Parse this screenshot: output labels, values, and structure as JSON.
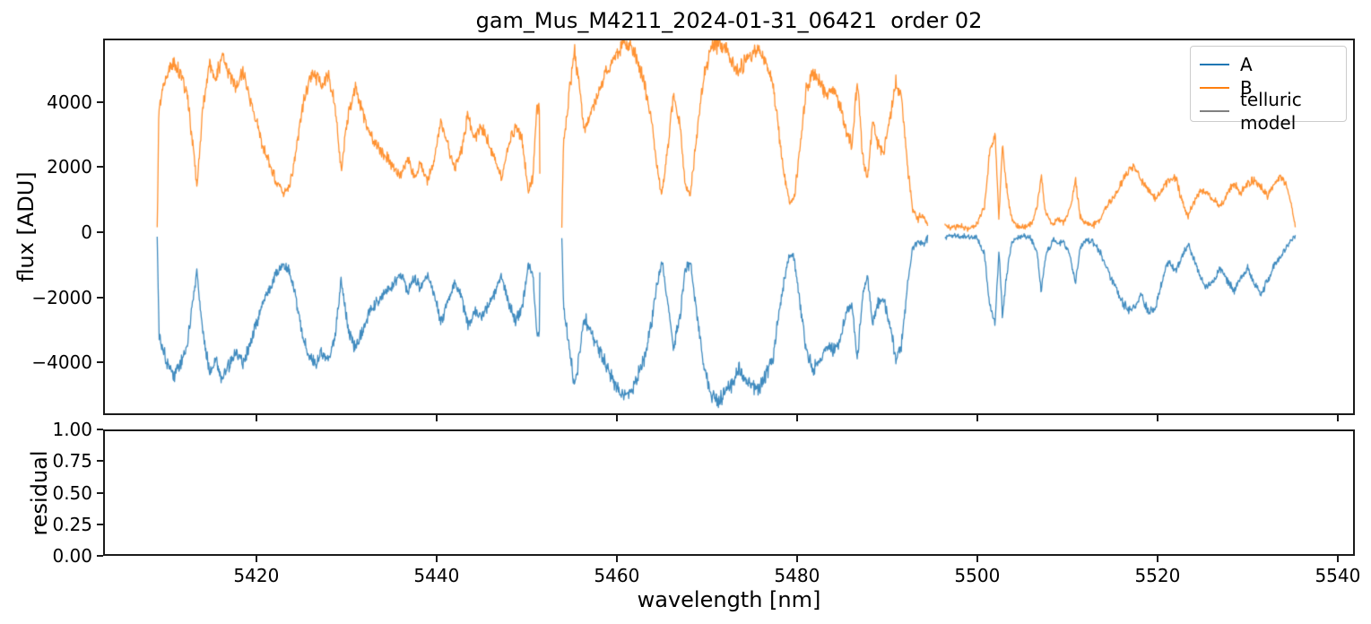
{
  "title": "gam_Mus_M4211_2024-01-31_06421  order 02",
  "chart_data": {
    "type": "line",
    "title": "gam_Mus_M4211_2024-01-31_06421  order 02",
    "xlabel": "wavelength [nm]",
    "legend": {
      "position": "upper right",
      "entries": [
        {
          "label": "A",
          "color": "#1f77b4"
        },
        {
          "label": "B",
          "color": "#ff7f0e"
        },
        {
          "label": "telluric model",
          "color": "#808080"
        }
      ]
    },
    "top_panel": {
      "ylabel": "flux [ADU]",
      "ylim": [
        -5612,
        5942
      ],
      "yticks": {
        "values": [
          4000,
          2000,
          0,
          -2000,
          -4000
        ],
        "labels": [
          "4000",
          "2000",
          "0",
          "−2000",
          "−4000"
        ]
      },
      "xlim": [
        5403.0,
        5541.9
      ],
      "xticks": {
        "values": [
          5420,
          5440,
          5460,
          5480,
          5500,
          5520,
          5540
        ],
        "labels": [
          "5420",
          "5440",
          "5460",
          "5480",
          "5500",
          "5520",
          "5540"
        ]
      },
      "grid": false,
      "series_keys": [
        "A",
        "B"
      ],
      "telluric_model_plotted": false,
      "segments": [
        {
          "noise": 330,
          "x": [
            5409.0,
            5409.2,
            5410.0,
            5410.8,
            5411.5,
            5412.3,
            5413.0,
            5413.4,
            5414.0,
            5414.8,
            5415.5,
            5416.2,
            5417.0,
            5417.8,
            5418.5,
            5419.2,
            5420.0,
            5420.8,
            5421.5,
            5422.3,
            5423.0,
            5423.6,
            5424.3,
            5425.0,
            5425.8,
            5426.5,
            5427.2,
            5428.0,
            5428.7,
            5429.4,
            5430.2,
            5431.0,
            5431.8,
            5432.5,
            5433.2,
            5434.0,
            5435.0,
            5436.0,
            5436.8,
            5437.5,
            5438.2,
            5439.0,
            5439.8,
            5440.5,
            5441.2,
            5442.0,
            5442.8,
            5443.5,
            5444.2,
            5445.0,
            5445.8,
            5446.5,
            5447.2,
            5448.0,
            5448.8,
            5449.5,
            5450.2,
            5450.7,
            5451.1,
            5451.4,
            5451.5
          ],
          "B": [
            150,
            3900,
            4700,
            5300,
            4900,
            4300,
            2600,
            1400,
            3600,
            5200,
            4700,
            5400,
            4900,
            4400,
            4900,
            4200,
            3400,
            2600,
            2100,
            1500,
            1200,
            1300,
            2300,
            3600,
            4600,
            4900,
            4500,
            4700,
            4000,
            1900,
            3600,
            4400,
            3700,
            3100,
            2700,
            2400,
            2100,
            1700,
            2300,
            1700,
            2100,
            1600,
            2300,
            3400,
            2700,
            2000,
            2500,
            3600,
            2900,
            3200,
            2700,
            2200,
            1600,
            2700,
            3300,
            2800,
            1200,
            1700,
            3700,
            3900,
            200
          ],
          "A": [
            -120,
            -3100,
            -3900,
            -4400,
            -4100,
            -3500,
            -2100,
            -1100,
            -3000,
            -4300,
            -3900,
            -4500,
            -4100,
            -3600,
            -4000,
            -3500,
            -2800,
            -2100,
            -1700,
            -1200,
            -1000,
            -1100,
            -1900,
            -3000,
            -3800,
            -4100,
            -3700,
            -3900,
            -3300,
            -1500,
            -3000,
            -3600,
            -3000,
            -2500,
            -2200,
            -1900,
            -1700,
            -1300,
            -1800,
            -1400,
            -1700,
            -1300,
            -1900,
            -2800,
            -2200,
            -1600,
            -2000,
            -2900,
            -2400,
            -2600,
            -2200,
            -1800,
            -1300,
            -2200,
            -2700,
            -2300,
            -1000,
            -1400,
            -3000,
            -3200,
            -150
          ]
        },
        {
          "noise": 330,
          "x": [
            5453.9,
            5454.1,
            5454.8,
            5455.3,
            5455.8,
            5456.4,
            5457.2,
            5458.0,
            5459.0,
            5460.0,
            5460.8,
            5461.5,
            5462.2,
            5463.0,
            5463.8,
            5464.5,
            5465.0,
            5465.6,
            5466.3,
            5467.0,
            5467.6,
            5468.2,
            5469.0,
            5469.8,
            5470.5,
            5471.3,
            5472.0,
            5472.8,
            5473.5,
            5474.2,
            5475.0,
            5475.8,
            5476.5,
            5477.3,
            5478.0,
            5478.6,
            5479.2,
            5479.7,
            5480.3,
            5481.0,
            5481.8,
            5482.5,
            5483.2,
            5484.0,
            5484.8,
            5485.5,
            5486.1,
            5486.7,
            5487.3,
            5487.8,
            5488.4,
            5489.0,
            5489.6,
            5490.3,
            5491.0,
            5491.6,
            5492.2,
            5492.8,
            5493.4,
            5494.0,
            5494.5
          ],
          "B": [
            200,
            2800,
            4400,
            5600,
            4600,
            3100,
            3700,
            4300,
            5000,
            5500,
            5800,
            5700,
            5300,
            4600,
            3500,
            1900,
            1100,
            2500,
            4200,
            3300,
            1400,
            1200,
            3300,
            5000,
            5700,
            5800,
            5600,
            5300,
            4900,
            5200,
            5500,
            5600,
            5200,
            4600,
            3000,
            1700,
            900,
            1000,
            2600,
            4300,
            4900,
            4600,
            4200,
            4400,
            3900,
            3000,
            2700,
            4700,
            2300,
            1600,
            3400,
            2700,
            2400,
            3500,
            4600,
            4100,
            2200,
            700,
            400,
            500,
            200
          ],
          "A": [
            -150,
            -2300,
            -3700,
            -4700,
            -3900,
            -2600,
            -3100,
            -3600,
            -4200,
            -4700,
            -5000,
            -4900,
            -4500,
            -3900,
            -2900,
            -1500,
            -900,
            -2000,
            -3500,
            -2700,
            -1100,
            -1000,
            -2800,
            -4300,
            -5000,
            -5200,
            -4900,
            -4600,
            -4200,
            -4500,
            -4700,
            -4800,
            -4400,
            -3900,
            -2500,
            -1400,
            -700,
            -800,
            -2100,
            -3600,
            -4200,
            -3900,
            -3500,
            -3700,
            -3300,
            -2500,
            -2200,
            -3900,
            -1900,
            -1300,
            -2800,
            -2200,
            -2000,
            -2900,
            -3900,
            -3400,
            -1800,
            -500,
            -300,
            -400,
            -150
          ]
        },
        {
          "noise": 240,
          "x": [
            5496.4,
            5497.0,
            5498.0,
            5499.0,
            5500.0,
            5500.8,
            5501.4,
            5502.0,
            5502.4,
            5502.8,
            5503.2,
            5503.8,
            5504.4,
            5505.2,
            5506.0,
            5506.6,
            5507.1,
            5507.6,
            5508.4,
            5509.0,
            5509.6,
            5510.3,
            5510.9,
            5511.4,
            5512.0,
            5512.8,
            5513.6,
            5514.4,
            5515.2,
            5516.0,
            5516.8,
            5517.5,
            5518.2,
            5519.0,
            5519.8,
            5520.5,
            5521.2,
            5522.0,
            5522.8,
            5523.4,
            5524.0,
            5524.8,
            5525.5,
            5526.2,
            5527.0,
            5527.8,
            5528.5,
            5529.2,
            5530.0,
            5530.8,
            5531.5,
            5532.2,
            5533.0,
            5533.8,
            5534.4,
            5534.9,
            5535.2,
            5535.3
          ],
          "B": [
            250,
            150,
            200,
            100,
            250,
            800,
            2500,
            2900,
            400,
            2700,
            1500,
            400,
            200,
            150,
            250,
            700,
            1700,
            600,
            250,
            400,
            300,
            700,
            1600,
            500,
            250,
            200,
            400,
            800,
            1100,
            1500,
            1900,
            2000,
            1600,
            1300,
            1000,
            1300,
            1600,
            1700,
            900,
            500,
            900,
            1300,
            1200,
            1000,
            800,
            1200,
            1500,
            1200,
            1500,
            1600,
            1400,
            1100,
            1500,
            1700,
            1400,
            800,
            300,
            200
          ],
          "A": [
            -200,
            -100,
            -150,
            -120,
            -200,
            -700,
            -2300,
            -2800,
            -500,
            -2600,
            -1400,
            -350,
            -150,
            -120,
            -200,
            -600,
            -1800,
            -700,
            -250,
            -350,
            -300,
            -700,
            -1600,
            -500,
            -250,
            -300,
            -600,
            -1100,
            -1600,
            -2100,
            -2400,
            -2300,
            -1900,
            -2500,
            -2300,
            -1500,
            -900,
            -1200,
            -700,
            -350,
            -800,
            -1400,
            -1700,
            -1500,
            -1100,
            -1500,
            -1800,
            -1400,
            -1100,
            -1600,
            -1900,
            -1500,
            -1000,
            -700,
            -400,
            -250,
            -150,
            -100
          ]
        }
      ]
    },
    "bottom_panel": {
      "ylabel": "residual",
      "ylim": [
        0.0,
        1.0
      ],
      "yticks": {
        "values": [
          1.0,
          0.75,
          0.5,
          0.25,
          0.0
        ],
        "labels": [
          "1.00",
          "0.75",
          "0.50",
          "0.25",
          "0.00"
        ]
      },
      "grid": false,
      "has_data": false
    }
  }
}
